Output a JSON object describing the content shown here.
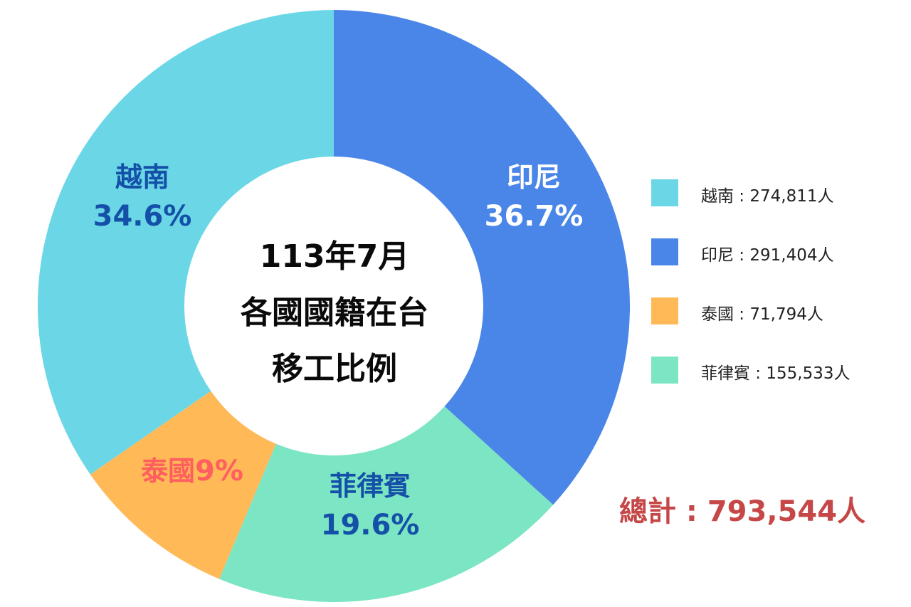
{
  "chart_data": {
    "type": "pie",
    "title_lines": [
      "113年7月",
      "各國國籍在台",
      "移工比例"
    ],
    "slices": [
      {
        "name": "印尼",
        "percent_label": "36.7%",
        "percent": 36.7,
        "count": 291404,
        "legend": "印尼 : 291,404人",
        "color": "#4a86e8",
        "label_color": "#ffffff"
      },
      {
        "name": "菲律賓",
        "percent_label": "19.6%",
        "percent": 19.6,
        "count": 155533,
        "legend": "菲律賓 : 155,533人",
        "color": "#7ce5c3",
        "label_color": "#1550a8"
      },
      {
        "name": "泰國",
        "percent_label": "9%",
        "percent": 9.0,
        "count": 71794,
        "legend": "泰國 : 71,794人",
        "color": "#ffb957",
        "label_color": "#ff5f5f"
      },
      {
        "name": "越南",
        "percent_label": "34.6%",
        "percent": 34.6,
        "count": 274811,
        "legend": "越南 : 274,811人",
        "color": "#6bd7e6",
        "label_color": "#1550a8"
      }
    ],
    "legend_order": [
      "越南",
      "印尼",
      "泰國",
      "菲律賓"
    ],
    "legend_placement": "right",
    "total_label": "總計 : 793,544人",
    "total_color": "#c64747"
  }
}
